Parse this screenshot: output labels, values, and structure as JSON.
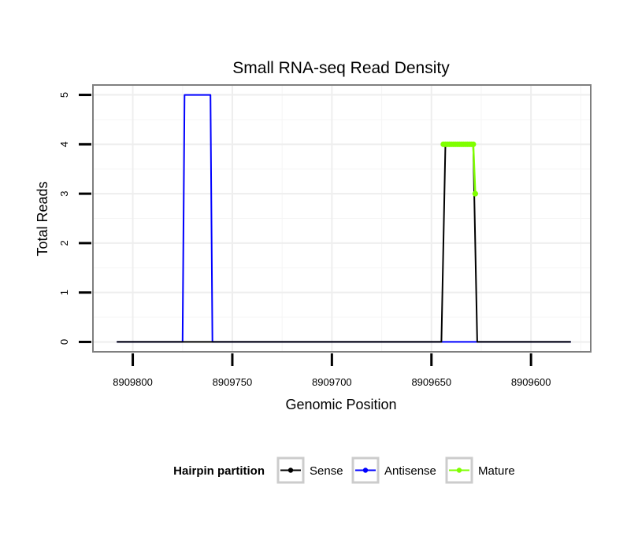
{
  "chart_data": {
    "type": "line",
    "title": "Small RNA-seq Read Density",
    "xlabel": "Genomic Position",
    "ylabel": "Total Reads",
    "x_reversed": true,
    "xlim": [
      8909820,
      8909570
    ],
    "ylim": [
      -0.2,
      5.2
    ],
    "xticks": [
      8909800,
      8909750,
      8909700,
      8909650,
      8909600
    ],
    "xtick_labels": [
      "8909800",
      "8909750",
      "8909700",
      "8909650",
      "8909600"
    ],
    "yticks": [
      0,
      1,
      2,
      3,
      4,
      5
    ],
    "ytick_labels": [
      "0",
      "1",
      "2",
      "3",
      "4",
      "5"
    ],
    "grid": true,
    "legend": {
      "title": "Hairpin partition",
      "position": "bottom",
      "entries": [
        "Sense",
        "Antisense",
        "Mature"
      ]
    },
    "series": [
      {
        "name": "Antisense",
        "color": "#0000ff",
        "marker": false,
        "x": [
          8909808,
          8909775,
          8909774,
          8909761,
          8909760,
          8909644,
          8909643,
          8909629,
          8909628,
          8909580
        ],
        "y": [
          0,
          0,
          5,
          5,
          0,
          0,
          0,
          0,
          0,
          0
        ]
      },
      {
        "name": "Sense",
        "color": "#000000",
        "marker": false,
        "x": [
          8909808,
          8909645,
          8909643,
          8909629,
          8909627,
          8909580
        ],
        "y": [
          0,
          0,
          4,
          4,
          0,
          0
        ]
      },
      {
        "name": "Mature",
        "color": "#7fff00",
        "marker": true,
        "x": [
          8909644,
          8909643,
          8909642,
          8909641,
          8909640,
          8909639,
          8909638,
          8909637,
          8909636,
          8909635,
          8909634,
          8909633,
          8909632,
          8909631,
          8909630,
          8909629,
          8909628
        ],
        "y": [
          4,
          4,
          4,
          4,
          4,
          4,
          4,
          4,
          4,
          4,
          4,
          4,
          4,
          4,
          4,
          4,
          3
        ]
      }
    ]
  }
}
